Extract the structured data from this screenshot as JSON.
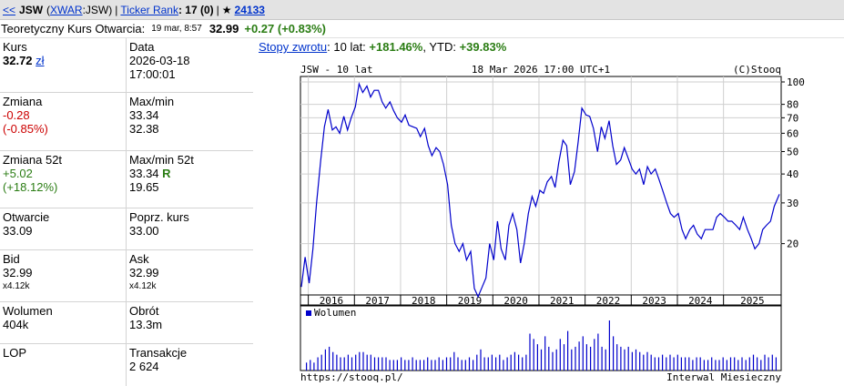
{
  "topbar": {
    "back": "<<",
    "ticker": "JSW",
    "market_open": "(",
    "market_link": "XWAR",
    "market_suffix": ":JSW)",
    "sep1": "|",
    "rank_link": "Ticker Rank",
    "rank_value": ": 17 (0)",
    "sep2": "|",
    "star": "★",
    "star_count": "24133"
  },
  "open_row": {
    "label": "Teoretyczny Kurs Otwarcia:",
    "datetime": "19 mar, 8:57",
    "value": "32.99",
    "change": "+0.27 (+0.83%)"
  },
  "quote": {
    "kurs_label": "Kurs",
    "kurs_value": "32.72",
    "kurs_unit": "zł",
    "data_label": "Data",
    "data_date": "2026-03-18",
    "data_time": "17:00:01",
    "zmiana_label": "Zmiana",
    "zmiana_abs": "-0.28",
    "zmiana_pct": "(-0.85%)",
    "maxmin_label": "Max/min",
    "max": "33.34",
    "min": "32.38",
    "zmiana52_label": "Zmiana 52t",
    "zmiana52_abs": "+5.02",
    "zmiana52_pct": "(+18.12%)",
    "maxmin52_label": "Max/min 52t",
    "max52": "33.34",
    "max52_flag": "R",
    "min52": "19.65",
    "otwarcie_label": "Otwarcie",
    "otwarcie_value": "33.09",
    "poprz_label": "Poprz. kurs",
    "poprz_value": "33.00",
    "bid_label": "Bid",
    "bid_value": "32.99",
    "bid_size": "x4.12k",
    "ask_label": "Ask",
    "ask_value": "32.99",
    "ask_size": "x4.12k",
    "wolumen_label": "Wolumen",
    "wolumen_value": "404k",
    "obrot_label": "Obrót",
    "obrot_value": "13.3m",
    "lop_label": "LOP",
    "transakcje_label": "Transakcje",
    "transakcje_value": "2 624"
  },
  "returns": {
    "link": "Stopy zwrotu",
    "period": ": 10 lat:",
    "ret_10y": "+181.46%",
    "ytd_label": ", YTD:",
    "ret_ytd": "+39.83%"
  },
  "chart_data": {
    "type": "line",
    "header_left": "JSW - 10 lat",
    "header_center": "18 Mar 2026 17:00 UTC+1",
    "header_right": "(C)Stooq",
    "footer_left": "https://stooq.pl/",
    "footer_right": "Interwal Miesieczny",
    "volume_legend": "Wolumen",
    "y_scale": "log",
    "ylim": [
      12,
      100
    ],
    "y_ticks": [
      20,
      30,
      40,
      50,
      60,
      70,
      80,
      100
    ],
    "x_labels": [
      "2016",
      "2017",
      "2018",
      "2019",
      "2020",
      "2021",
      "2022",
      "2023",
      "2024",
      "2025"
    ],
    "x_start": 2015.83,
    "x_end": 2026.25,
    "line_color": "#0000cc",
    "series": [
      {
        "x": [
          2015.85,
          2015.93,
          2016.02,
          2016.1,
          2016.18,
          2016.27,
          2016.35,
          2016.43,
          2016.52,
          2016.6,
          2016.68,
          2016.77,
          2016.85,
          2016.93,
          2017.02,
          2017.1,
          2017.18,
          2017.27,
          2017.35,
          2017.43,
          2017.52,
          2017.6,
          2017.68,
          2017.77,
          2017.85,
          2017.93,
          2018.02,
          2018.1,
          2018.18,
          2018.27,
          2018.35,
          2018.43,
          2018.52,
          2018.6,
          2018.68,
          2018.77,
          2018.85,
          2018.93,
          2019.02,
          2019.1,
          2019.18,
          2019.27,
          2019.35,
          2019.43,
          2019.52,
          2019.6,
          2019.68,
          2019.77,
          2019.85,
          2019.93,
          2020.02,
          2020.1,
          2020.18,
          2020.27,
          2020.35,
          2020.43,
          2020.52,
          2020.6,
          2020.68,
          2020.77,
          2020.85,
          2020.93,
          2021.02,
          2021.1,
          2021.18,
          2021.27,
          2021.35,
          2021.43,
          2021.52,
          2021.6,
          2021.68,
          2021.77,
          2021.85,
          2021.93,
          2022.02,
          2022.1,
          2022.18,
          2022.27,
          2022.35,
          2022.43,
          2022.52,
          2022.6,
          2022.68,
          2022.77,
          2022.85,
          2022.93,
          2023.02,
          2023.1,
          2023.18,
          2023.27,
          2023.35,
          2023.43,
          2023.52,
          2023.6,
          2023.68,
          2023.77,
          2023.85,
          2023.93,
          2024.02,
          2024.1,
          2024.18,
          2024.27,
          2024.35,
          2024.43,
          2024.52,
          2024.6,
          2024.68,
          2024.77,
          2024.85,
          2024.93,
          2025.02,
          2025.1,
          2025.18,
          2025.27,
          2025.35,
          2025.43,
          2025.52,
          2025.6,
          2025.68,
          2025.77,
          2025.85,
          2025.93,
          2026.02,
          2026.1,
          2026.21
        ],
        "values": [
          13.0,
          17.5,
          13.5,
          19.0,
          30.0,
          46.0,
          64.0,
          76.0,
          62.0,
          64.0,
          60.0,
          71.0,
          62.0,
          70.0,
          78.0,
          98.0,
          90.0,
          96.0,
          86.0,
          92.0,
          92.0,
          82.0,
          77.0,
          82.0,
          75.0,
          70.0,
          67.0,
          72.0,
          65.0,
          64.0,
          63.0,
          58.0,
          63.0,
          53.0,
          48.0,
          52.0,
          50.0,
          44.0,
          36.0,
          24.0,
          20.0,
          18.5,
          20.0,
          17.0,
          18.5,
          12.8,
          11.8,
          13.0,
          14.2,
          20.0,
          17.0,
          25.0,
          19.0,
          17.0,
          24.0,
          27.0,
          23.0,
          16.5,
          20.0,
          27.0,
          32.0,
          29.0,
          34.0,
          33.0,
          37.0,
          39.0,
          35.0,
          45.0,
          56.0,
          53.0,
          36.0,
          41.0,
          55.0,
          77.0,
          72.0,
          71.0,
          63.0,
          50.0,
          64.0,
          57.0,
          68.0,
          53.0,
          44.0,
          46.0,
          52.0,
          47.0,
          42.0,
          40.0,
          42.0,
          36.0,
          43.0,
          40.0,
          42.0,
          38.0,
          34.0,
          30.0,
          27.0,
          26.0,
          27.0,
          23.0,
          21.0,
          23.0,
          24.0,
          22.0,
          21.0,
          23.0,
          23.0,
          23.0,
          26.0,
          27.0,
          26.0,
          25.0,
          25.0,
          24.0,
          23.0,
          26.0,
          23.0,
          21.0,
          19.0,
          20.0,
          23.0,
          24.0,
          25.0,
          29.0,
          32.7
        ]
      }
    ],
    "volume": [
      3,
      4,
      3,
      5,
      6,
      8,
      9,
      7,
      6,
      5,
      5,
      6,
      5,
      6,
      7,
      7,
      6,
      6,
      5,
      5,
      5,
      5,
      4,
      4,
      4,
      5,
      4,
      4,
      5,
      4,
      4,
      4,
      5,
      4,
      4,
      5,
      4,
      5,
      5,
      7,
      5,
      4,
      4,
      5,
      4,
      6,
      8,
      5,
      5,
      6,
      5,
      6,
      4,
      5,
      6,
      7,
      6,
      5,
      6,
      14,
      12,
      10,
      8,
      13,
      9,
      7,
      8,
      12,
      10,
      15,
      8,
      9,
      11,
      13,
      10,
      9,
      12,
      14,
      9,
      8,
      19,
      13,
      10,
      9,
      8,
      9,
      7,
      8,
      7,
      6,
      7,
      6,
      5,
      5,
      6,
      5,
      6,
      5,
      6,
      5,
      5,
      5,
      4,
      5,
      5,
      4,
      4,
      5,
      4,
      4,
      5,
      4,
      5,
      5,
      4,
      5,
      4,
      5,
      6,
      5,
      4,
      6,
      5,
      6,
      5
    ],
    "volume_max": 19,
    "volume_color": "#0000cc"
  }
}
